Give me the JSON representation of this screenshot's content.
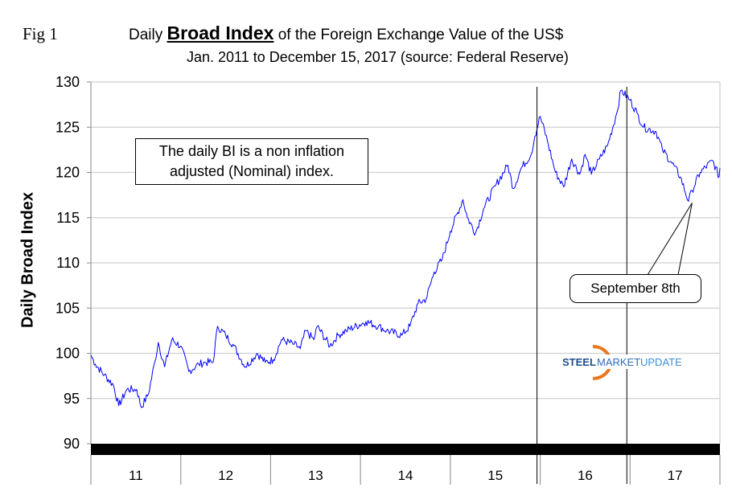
{
  "figure_label": "Fig 1",
  "title": {
    "prefix": "Daily",
    "emphasis": "Broad Index",
    "suffix": "of the Foreign Exchange Value of the US$"
  },
  "subtitle": "Jan. 2011 to December 15, 2017 (source: Federal Reserve)",
  "note": "The daily BI is a non inflation adjusted (Nominal) index.",
  "callout": "September 8th",
  "logo": {
    "text_bold": "STEEL",
    "text_mid": "MARKET",
    "text_light": "UPDATE",
    "colors": {
      "dark": "#1f4e8c",
      "mid": "#2f6db5",
      "light": "#3f8fd0",
      "swoosh": "#e8771e"
    }
  },
  "chart_data": {
    "type": "line",
    "title": "Daily Broad Index of the Foreign Exchange Value of the US$",
    "subtitle": "Jan. 2011 to December 15, 2017 (source: Federal Reserve)",
    "xlabel": "",
    "ylabel": "Daily Broad Index",
    "ylim": [
      90,
      130
    ],
    "yticks": [
      90,
      95,
      100,
      105,
      110,
      115,
      120,
      125,
      130
    ],
    "xlim": [
      2011,
      2018
    ],
    "xtick_labels": [
      "11",
      "12",
      "13",
      "14",
      "15",
      "16",
      "17"
    ],
    "grid": true,
    "legend": "none",
    "line_color": "#0000ff",
    "vertical_markers": [
      2016.0,
      2017.0
    ],
    "annotation": {
      "text": "September 8th",
      "x": 2017.69,
      "y": 116.8
    },
    "x": [
      2011.0,
      2011.05,
      2011.15,
      2011.25,
      2011.31,
      2011.4,
      2011.51,
      2011.56,
      2011.64,
      2011.71,
      2011.75,
      2011.82,
      2011.9,
      2012.0,
      2012.09,
      2012.2,
      2012.27,
      2012.36,
      2012.41,
      2012.5,
      2012.58,
      2012.72,
      2012.85,
      2012.94,
      2013.03,
      2013.12,
      2013.26,
      2013.33,
      2013.39,
      2013.48,
      2013.52,
      2013.66,
      2013.75,
      2013.84,
      2014.06,
      2014.2,
      2014.29,
      2014.46,
      2014.55,
      2014.64,
      2014.73,
      2014.82,
      2014.91,
      2015.0,
      2015.14,
      2015.19,
      2015.28,
      2015.37,
      2015.5,
      2015.64,
      2015.7,
      2015.79,
      2015.9,
      2015.94,
      2016.0,
      2016.08,
      2016.17,
      2016.26,
      2016.35,
      2016.44,
      2016.5,
      2016.57,
      2016.66,
      2016.75,
      2016.85,
      2016.9,
      2017.0,
      2017.08,
      2017.15,
      2017.29,
      2017.36,
      2017.47,
      2017.56,
      2017.65,
      2017.69,
      2017.78,
      2017.92,
      2017.99,
      2018.0
    ],
    "y": [
      99.8,
      98.8,
      97.6,
      96.5,
      94.2,
      96.0,
      96.0,
      94.0,
      95.5,
      99.0,
      101.2,
      98.5,
      101.5,
      100.8,
      98.0,
      98.8,
      99.0,
      99.0,
      103.0,
      102.0,
      101.0,
      98.5,
      100.0,
      99.0,
      99.3,
      101.5,
      101.0,
      100.5,
      102.5,
      101.5,
      103.0,
      100.8,
      102.0,
      102.5,
      103.5,
      103.0,
      102.5,
      102.0,
      103.0,
      105.5,
      106.0,
      109.0,
      110.4,
      113.5,
      117.0,
      115.0,
      113.3,
      116.0,
      118.5,
      120.8,
      118.2,
      120.5,
      122.0,
      124.0,
      126.2,
      123.5,
      120.0,
      118.4,
      121.5,
      119.8,
      122.0,
      119.8,
      121.5,
      123.0,
      126.5,
      129.1,
      128.0,
      126.5,
      125.0,
      124.5,
      122.5,
      121.0,
      119.5,
      116.8,
      118.0,
      120.0,
      121.3,
      119.5,
      120.5
    ]
  }
}
